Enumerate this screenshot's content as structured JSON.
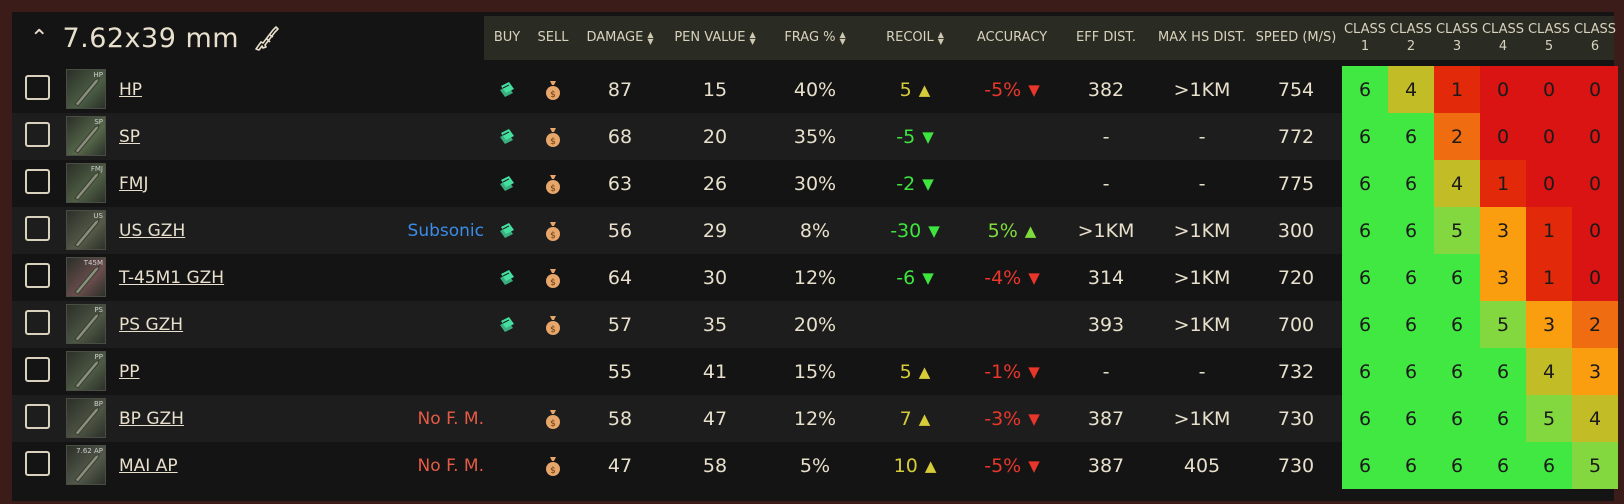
{
  "caliber": {
    "title": "7.62x39 mm",
    "collapse_icon": "chevron-up-icon",
    "weapon_icon": "assault-rifle-icon"
  },
  "columns": {
    "buy": "BUY",
    "sell": "SELL",
    "damage": "DAMAGE",
    "pen": "PEN VALUE",
    "frag": "FRAG %",
    "recoil": "RECOIL",
    "accuracy": "ACCURACY",
    "eff": "EFF DIST.",
    "maxhs": "MAX HS DIST.",
    "speed": "SPEED (M/S)",
    "class_label": "CLASS",
    "class_nums": [
      "1",
      "2",
      "3",
      "4",
      "5",
      "6"
    ]
  },
  "colors": {
    "c6": "#41e841",
    "c5": "#83d840",
    "c4": "#c2bd27",
    "c3": "#fa9d0f",
    "c2": "#ef6d10",
    "c1": "#e2290a",
    "c0": "#d91413",
    "buy_icon": "#45e0a0",
    "sell_icon": "#e7a66a"
  },
  "rows": [
    {
      "name": "HP",
      "thumb": "HP",
      "thumb_color": "#4b5e44",
      "tag": "",
      "tag_type": "",
      "buy": true,
      "sell": true,
      "damage": "87",
      "pen": "15",
      "frag": "40%",
      "recoil": "5",
      "recoil_dir": "up",
      "recoil_color": "yellow",
      "accuracy": "-5%",
      "acc_dir": "down",
      "acc_color": "red",
      "eff": "382",
      "maxhs": ">1KM",
      "speed": "754",
      "classes": [
        "6",
        "4",
        "1",
        "0",
        "0",
        "0"
      ]
    },
    {
      "name": "SP",
      "thumb": "SP",
      "thumb_color": "#56684a",
      "tag": "",
      "tag_type": "",
      "buy": true,
      "sell": true,
      "damage": "68",
      "pen": "20",
      "frag": "35%",
      "recoil": "-5",
      "recoil_dir": "down",
      "recoil_color": "green",
      "accuracy": "",
      "acc_dir": "",
      "acc_color": "",
      "eff": "-",
      "maxhs": "-",
      "speed": "772",
      "classes": [
        "6",
        "6",
        "2",
        "0",
        "0",
        "0"
      ]
    },
    {
      "name": "FMJ",
      "thumb": "FMJ",
      "thumb_color": "#4f5f44",
      "tag": "",
      "tag_type": "",
      "buy": true,
      "sell": true,
      "damage": "63",
      "pen": "26",
      "frag": "30%",
      "recoil": "-2",
      "recoil_dir": "down",
      "recoil_color": "green",
      "accuracy": "",
      "acc_dir": "",
      "acc_color": "",
      "eff": "-",
      "maxhs": "-",
      "speed": "775",
      "classes": [
        "6",
        "6",
        "4",
        "1",
        "0",
        "0"
      ]
    },
    {
      "name": "US GZH",
      "thumb": "US",
      "thumb_color": "#555a48",
      "tag": "Subsonic",
      "tag_type": "blue",
      "buy": true,
      "sell": true,
      "damage": "56",
      "pen": "29",
      "frag": "8%",
      "recoil": "-30",
      "recoil_dir": "down",
      "recoil_color": "green",
      "accuracy": "5%",
      "acc_dir": "up",
      "acc_color": "lgreen",
      "eff": ">1KM",
      "maxhs": ">1KM",
      "speed": "300",
      "classes": [
        "6",
        "6",
        "5",
        "3",
        "1",
        "0"
      ]
    },
    {
      "name": "T-45M1 GZH",
      "thumb": "T45M",
      "thumb_color": "#6b4d4d",
      "tag": "",
      "tag_type": "",
      "buy": true,
      "sell": true,
      "damage": "64",
      "pen": "30",
      "frag": "12%",
      "recoil": "-6",
      "recoil_dir": "down",
      "recoil_color": "green",
      "accuracy": "-4%",
      "acc_dir": "down",
      "acc_color": "red",
      "eff": "314",
      "maxhs": ">1KM",
      "speed": "720",
      "classes": [
        "6",
        "6",
        "6",
        "3",
        "1",
        "0"
      ]
    },
    {
      "name": "PS GZH",
      "thumb": "PS",
      "thumb_color": "#4d5744",
      "tag": "",
      "tag_type": "",
      "buy": true,
      "sell": true,
      "damage": "57",
      "pen": "35",
      "frag": "20%",
      "recoil": "",
      "recoil_dir": "",
      "recoil_color": "",
      "accuracy": "",
      "acc_dir": "",
      "acc_color": "",
      "eff": "393",
      "maxhs": ">1KM",
      "speed": "700",
      "classes": [
        "6",
        "6",
        "6",
        "5",
        "3",
        "2"
      ]
    },
    {
      "name": "PP",
      "thumb": "PP",
      "thumb_color": "#4e5a45",
      "tag": "",
      "tag_type": "",
      "buy": false,
      "sell": false,
      "damage": "55",
      "pen": "41",
      "frag": "15%",
      "recoil": "5",
      "recoil_dir": "up",
      "recoil_color": "yellow",
      "accuracy": "-1%",
      "acc_dir": "down",
      "acc_color": "red",
      "eff": "-",
      "maxhs": "-",
      "speed": "732",
      "classes": [
        "6",
        "6",
        "6",
        "6",
        "4",
        "3"
      ]
    },
    {
      "name": "BP GZH",
      "thumb": "BP",
      "thumb_color": "#4d5443",
      "tag": "No F. M.",
      "tag_type": "red",
      "buy": false,
      "sell": true,
      "damage": "58",
      "pen": "47",
      "frag": "12%",
      "recoil": "7",
      "recoil_dir": "up",
      "recoil_color": "yellow",
      "accuracy": "-3%",
      "acc_dir": "down",
      "acc_color": "red",
      "eff": "387",
      "maxhs": ">1KM",
      "speed": "730",
      "classes": [
        "6",
        "6",
        "6",
        "6",
        "5",
        "4"
      ]
    },
    {
      "name": "MAI AP",
      "thumb": "7.62 AP",
      "thumb_color": "#52594a",
      "tag": "No F. M.",
      "tag_type": "red",
      "buy": false,
      "sell": true,
      "damage": "47",
      "pen": "58",
      "frag": "5%",
      "recoil": "10",
      "recoil_dir": "up",
      "recoil_color": "yellow",
      "accuracy": "-5%",
      "acc_dir": "down",
      "acc_color": "red",
      "eff": "387",
      "maxhs": "405",
      "speed": "730",
      "classes": [
        "6",
        "6",
        "6",
        "6",
        "6",
        "5"
      ]
    }
  ]
}
